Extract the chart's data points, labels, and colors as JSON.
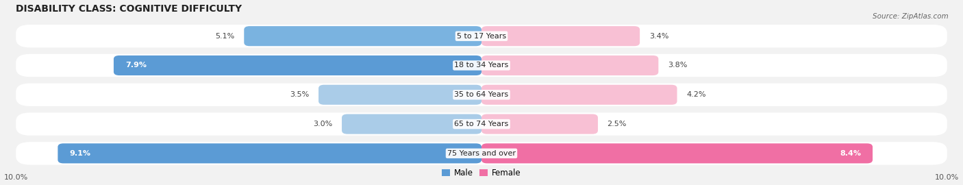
{
  "title": "DISABILITY CLASS: COGNITIVE DIFFICULTY",
  "source": "Source: ZipAtlas.com",
  "categories": [
    "5 to 17 Years",
    "18 to 34 Years",
    "35 to 64 Years",
    "65 to 74 Years",
    "75 Years and over"
  ],
  "male_values": [
    5.1,
    7.9,
    3.5,
    3.0,
    9.1
  ],
  "female_values": [
    3.4,
    3.8,
    4.2,
    2.5,
    8.4
  ],
  "male_color_dark": "#5b9bd5",
  "male_color_mid": "#7ab3e0",
  "male_color_light": "#aacce8",
  "female_color_dark": "#f06fa4",
  "female_color_mid": "#f4a0c0",
  "female_color_light": "#f8c0d4",
  "bg_color": "#f2f2f2",
  "row_bg_color": "#ffffff",
  "max_val": 10.0,
  "title_fontsize": 10,
  "label_fontsize": 8,
  "tick_fontsize": 8,
  "source_fontsize": 7.5,
  "legend_fontsize": 8.5
}
